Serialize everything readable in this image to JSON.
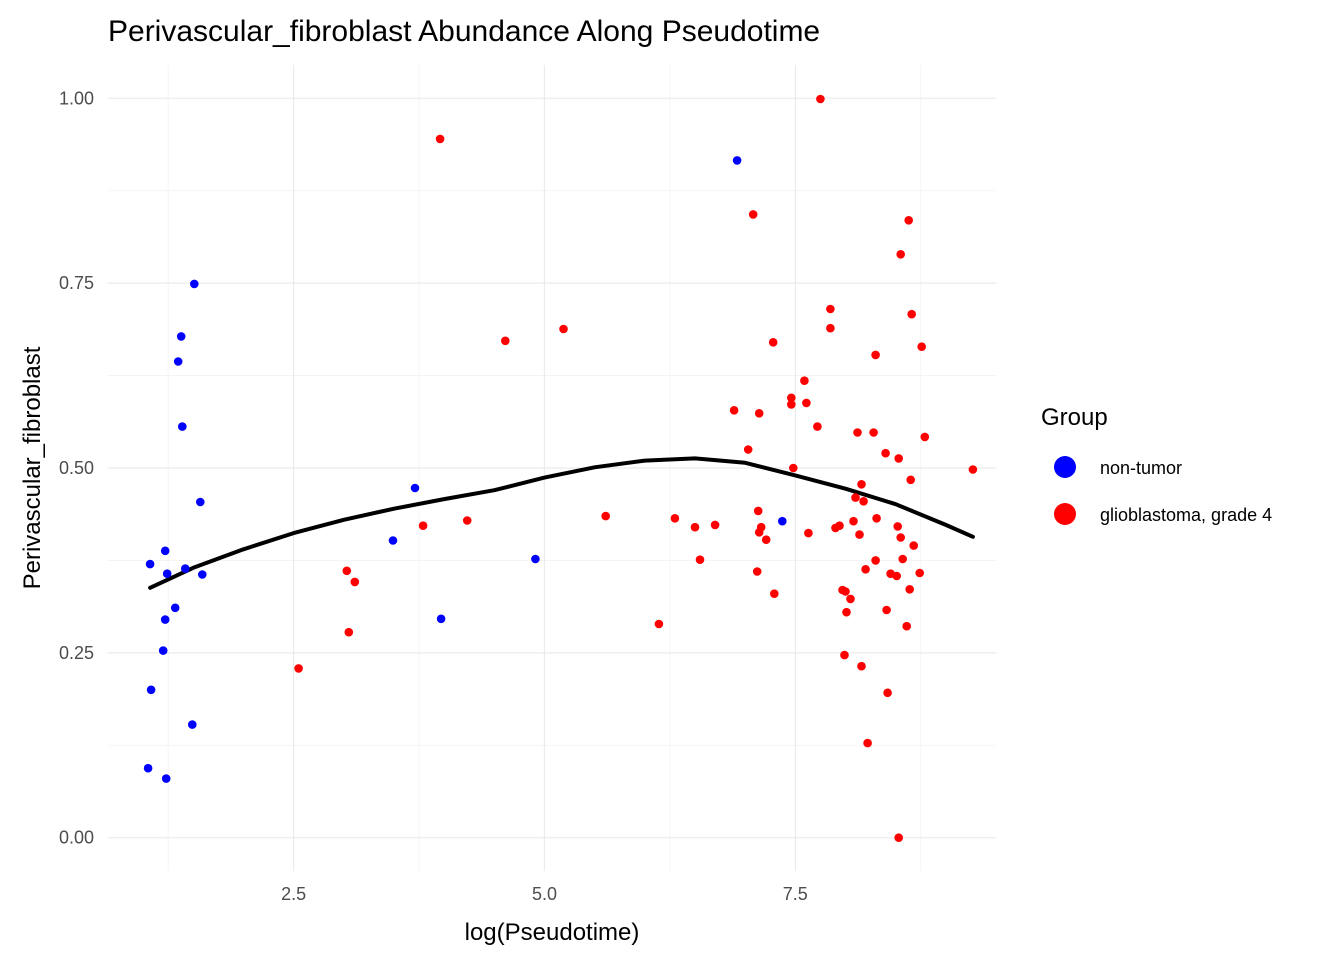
{
  "chart_data": {
    "type": "scatter",
    "title": "Perivascular_fibroblast Abundance Along Pseudotime",
    "xlabel": "log(Pseudotime)",
    "ylabel": "Perivascular_fibroblast",
    "xlim": [
      0.65,
      9.5
    ],
    "ylim": [
      -0.045,
      1.045
    ],
    "x_ticks": [
      2.5,
      5.0,
      7.5
    ],
    "x_tick_labels": [
      "2.5",
      "5.0",
      "7.5"
    ],
    "y_ticks": [
      0,
      0.25,
      0.5,
      0.75,
      1.0
    ],
    "y_tick_labels": [
      "0.00",
      "0.25",
      "0.50",
      "0.75",
      "1.00"
    ],
    "grid": true,
    "legend": {
      "title": "Group",
      "position": "right"
    },
    "series": [
      {
        "name": "non-tumor",
        "color": "#0000ff",
        "points": [
          [
            1.07,
            0.37
          ],
          [
            1.22,
            0.388
          ],
          [
            1.24,
            0.357
          ],
          [
            1.22,
            0.295
          ],
          [
            1.32,
            0.311
          ],
          [
            1.2,
            0.253
          ],
          [
            1.08,
            0.2
          ],
          [
            1.05,
            0.094
          ],
          [
            1.23,
            0.08
          ],
          [
            1.49,
            0.153
          ],
          [
            1.42,
            0.364
          ],
          [
            1.59,
            0.356
          ],
          [
            1.57,
            0.454
          ],
          [
            1.39,
            0.556
          ],
          [
            1.35,
            0.644
          ],
          [
            1.38,
            0.678
          ],
          [
            1.51,
            0.749
          ],
          [
            3.49,
            0.402
          ],
          [
            3.71,
            0.473
          ],
          [
            3.97,
            0.296
          ],
          [
            4.91,
            0.377
          ],
          [
            6.92,
            0.916
          ],
          [
            7.37,
            0.428
          ]
        ]
      },
      {
        "name": "glioblastoma, grade 4",
        "color": "#ff0000",
        "points": [
          [
            2.55,
            0.229
          ],
          [
            3.03,
            0.361
          ],
          [
            3.11,
            0.346
          ],
          [
            3.05,
            0.278
          ],
          [
            3.79,
            0.422
          ],
          [
            4.23,
            0.429
          ],
          [
            3.96,
            0.945
          ],
          [
            4.61,
            0.672
          ],
          [
            5.19,
            0.688
          ],
          [
            5.61,
            0.435
          ],
          [
            6.14,
            0.289
          ],
          [
            6.3,
            0.432
          ],
          [
            6.5,
            0.42
          ],
          [
            6.55,
            0.376
          ],
          [
            6.7,
            0.423
          ],
          [
            6.89,
            0.578
          ],
          [
            7.03,
            0.525
          ],
          [
            7.08,
            0.843
          ],
          [
            7.14,
            0.574
          ],
          [
            7.13,
            0.442
          ],
          [
            7.14,
            0.413
          ],
          [
            7.16,
            0.42
          ],
          [
            7.12,
            0.36
          ],
          [
            7.21,
            0.403
          ],
          [
            7.28,
            0.67
          ],
          [
            7.29,
            0.33
          ],
          [
            7.46,
            0.586
          ],
          [
            7.46,
            0.595
          ],
          [
            7.48,
            0.5
          ],
          [
            7.59,
            0.618
          ],
          [
            7.61,
            0.588
          ],
          [
            7.63,
            0.412
          ],
          [
            7.72,
            0.556
          ],
          [
            7.75,
            0.999
          ],
          [
            7.85,
            0.715
          ],
          [
            7.85,
            0.689
          ],
          [
            7.9,
            0.419
          ],
          [
            7.94,
            0.422
          ],
          [
            7.97,
            0.335
          ],
          [
            8.0,
            0.333
          ],
          [
            7.99,
            0.247
          ],
          [
            8.01,
            0.305
          ],
          [
            8.05,
            0.323
          ],
          [
            8.08,
            0.428
          ],
          [
            8.1,
            0.46
          ],
          [
            8.12,
            0.548
          ],
          [
            8.14,
            0.41
          ],
          [
            8.16,
            0.478
          ],
          [
            8.16,
            0.232
          ],
          [
            8.18,
            0.455
          ],
          [
            8.2,
            0.363
          ],
          [
            8.22,
            0.128
          ],
          [
            8.28,
            0.548
          ],
          [
            8.3,
            0.653
          ],
          [
            8.3,
            0.375
          ],
          [
            8.31,
            0.432
          ],
          [
            8.4,
            0.52
          ],
          [
            8.41,
            0.308
          ],
          [
            8.42,
            0.196
          ],
          [
            8.45,
            0.357
          ],
          [
            8.51,
            0.354
          ],
          [
            8.53,
            0.513
          ],
          [
            8.52,
            0.421
          ],
          [
            8.55,
            0.406
          ],
          [
            8.57,
            0.377
          ],
          [
            8.55,
            0.789
          ],
          [
            8.53,
            0.0
          ],
          [
            8.61,
            0.286
          ],
          [
            8.63,
            0.835
          ],
          [
            8.64,
            0.336
          ],
          [
            8.65,
            0.484
          ],
          [
            8.66,
            0.708
          ],
          [
            8.68,
            0.395
          ],
          [
            8.74,
            0.358
          ],
          [
            8.76,
            0.664
          ],
          [
            8.79,
            0.542
          ],
          [
            9.27,
            0.498
          ]
        ]
      }
    ],
    "smooth": {
      "color": "#000000",
      "x": [
        1.07,
        1.5,
        2.0,
        2.5,
        3.0,
        3.5,
        4.0,
        4.5,
        5.0,
        5.5,
        6.0,
        6.5,
        7.0,
        7.5,
        8.0,
        8.5,
        9.0,
        9.27
      ],
      "y": [
        0.338,
        0.365,
        0.39,
        0.412,
        0.43,
        0.445,
        0.458,
        0.47,
        0.487,
        0.501,
        0.51,
        0.513,
        0.507,
        0.49,
        0.472,
        0.451,
        0.423,
        0.407
      ]
    }
  }
}
